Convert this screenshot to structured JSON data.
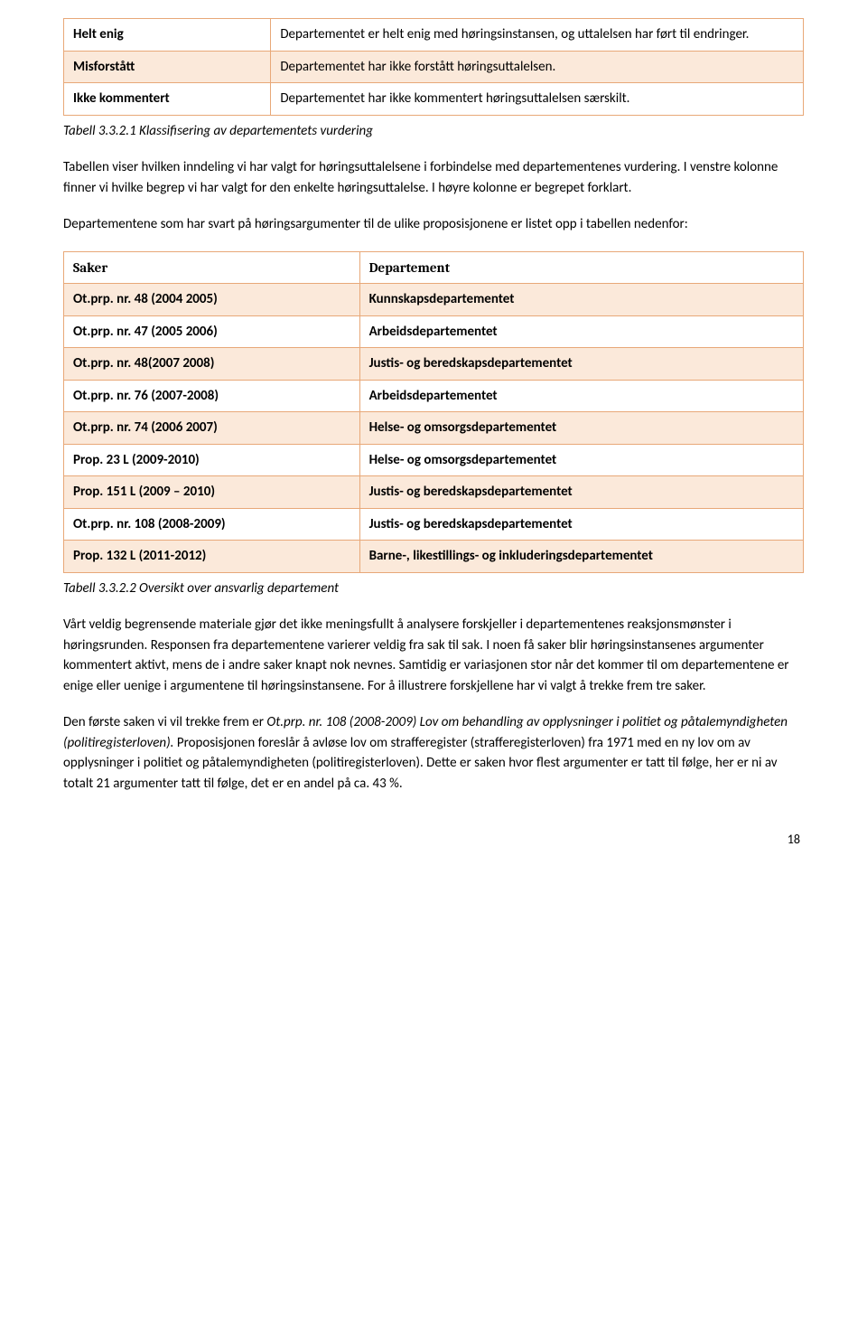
{
  "table1": {
    "rows": [
      {
        "k": "Helt enig",
        "v": "Departementet er helt enig med høringsinstansen, og uttalelsen har ført til endringer."
      },
      {
        "k": "Misforstått",
        "v": "Departementet har ikke forstått høringsuttalelsen."
      },
      {
        "k": "Ikke kommentert",
        "v": "Departementet har ikke kommentert høringsuttalelsen særskilt."
      }
    ],
    "caption": "Tabell 3.3.2.1 Klassifisering av departementets vurdering"
  },
  "para1": "Tabellen viser hvilken inndeling vi har valgt for høringsuttalelsene i forbindelse med departementenes vurdering. I venstre kolonne finner vi hvilke begrep vi har valgt for den enkelte høringsuttalelse. I høyre kolonne er begrepet forklart.",
  "para2": "Departementene som har svart på høringsargumenter til de ulike proposisjonene er listet opp i tabellen nedenfor:",
  "table2": {
    "headers": [
      "Saker",
      "Departement"
    ],
    "rows": [
      {
        "k": "Ot.prp. nr. 48 (2004 2005)",
        "v": "Kunnskapsdepartementet"
      },
      {
        "k": "Ot.prp. nr. 47 (2005 2006)",
        "v": "Arbeidsdepartementet"
      },
      {
        "k": "Ot.prp. nr. 48(2007 2008)",
        "v": "Justis- og beredskapsdepartementet"
      },
      {
        "k": "Ot.prp. nr. 76 (2007-2008)",
        "v": "Arbeidsdepartementet"
      },
      {
        "k": "Ot.prp. nr. 74 (2006 2007)",
        "v": "Helse- og omsorgsdepartementet"
      },
      {
        "k": "Prop. 23 L (2009-2010)",
        "v": "Helse- og omsorgsdepartementet"
      },
      {
        "k": "Prop.  151 L (2009 – 2010)",
        "v": "Justis- og beredskapsdepartementet"
      },
      {
        "k": "Ot.prp. nr. 108 (2008-2009)",
        "v": "Justis- og beredskapsdepartementet"
      },
      {
        "k": "Prop. 132 L (2011-2012)",
        "v": "Barne-, likestillings- og inkluderingsdepartementet"
      }
    ],
    "caption": "Tabell 3.3.2.2 Oversikt over ansvarlig departement"
  },
  "para3": "Vårt veldig begrensende materiale gjør det ikke meningsfullt å analysere forskjeller i departementenes reaksjonsmønster i høringsrunden. Responsen fra departementene varierer veldig fra sak til sak. I noen få saker blir høringsinstansenes argumenter kommentert aktivt, mens de i andre saker knapt nok nevnes. Samtidig er variasjonen stor når det kommer til om departementene er enige eller uenige i argumentene til høringsinstansene. For å illustrere forskjellene har vi valgt å trekke frem tre saker.",
  "para4_a": "Den første saken vi vil trekke frem er ",
  "para4_b": "Ot.prp. nr. 108 (2008-2009) Lov om behandling av opplysninger i politiet og påtalemyndigheten (politiregisterloven).",
  "para4_c": " Proposisjonen foreslår å avløse lov om strafferegister (strafferegisterloven) fra 1971 med en ny lov om av opplysninger i politiet og påtalemyndigheten (politiregisterloven). Dette er saken hvor flest argumenter er tatt til følge, her er ni av totalt 21 argumenter tatt til følge, det er en andel på ca. 43 %.",
  "pagenum": "18",
  "colors": {
    "stripe": "#fbe9da",
    "border": "#e8a878"
  }
}
